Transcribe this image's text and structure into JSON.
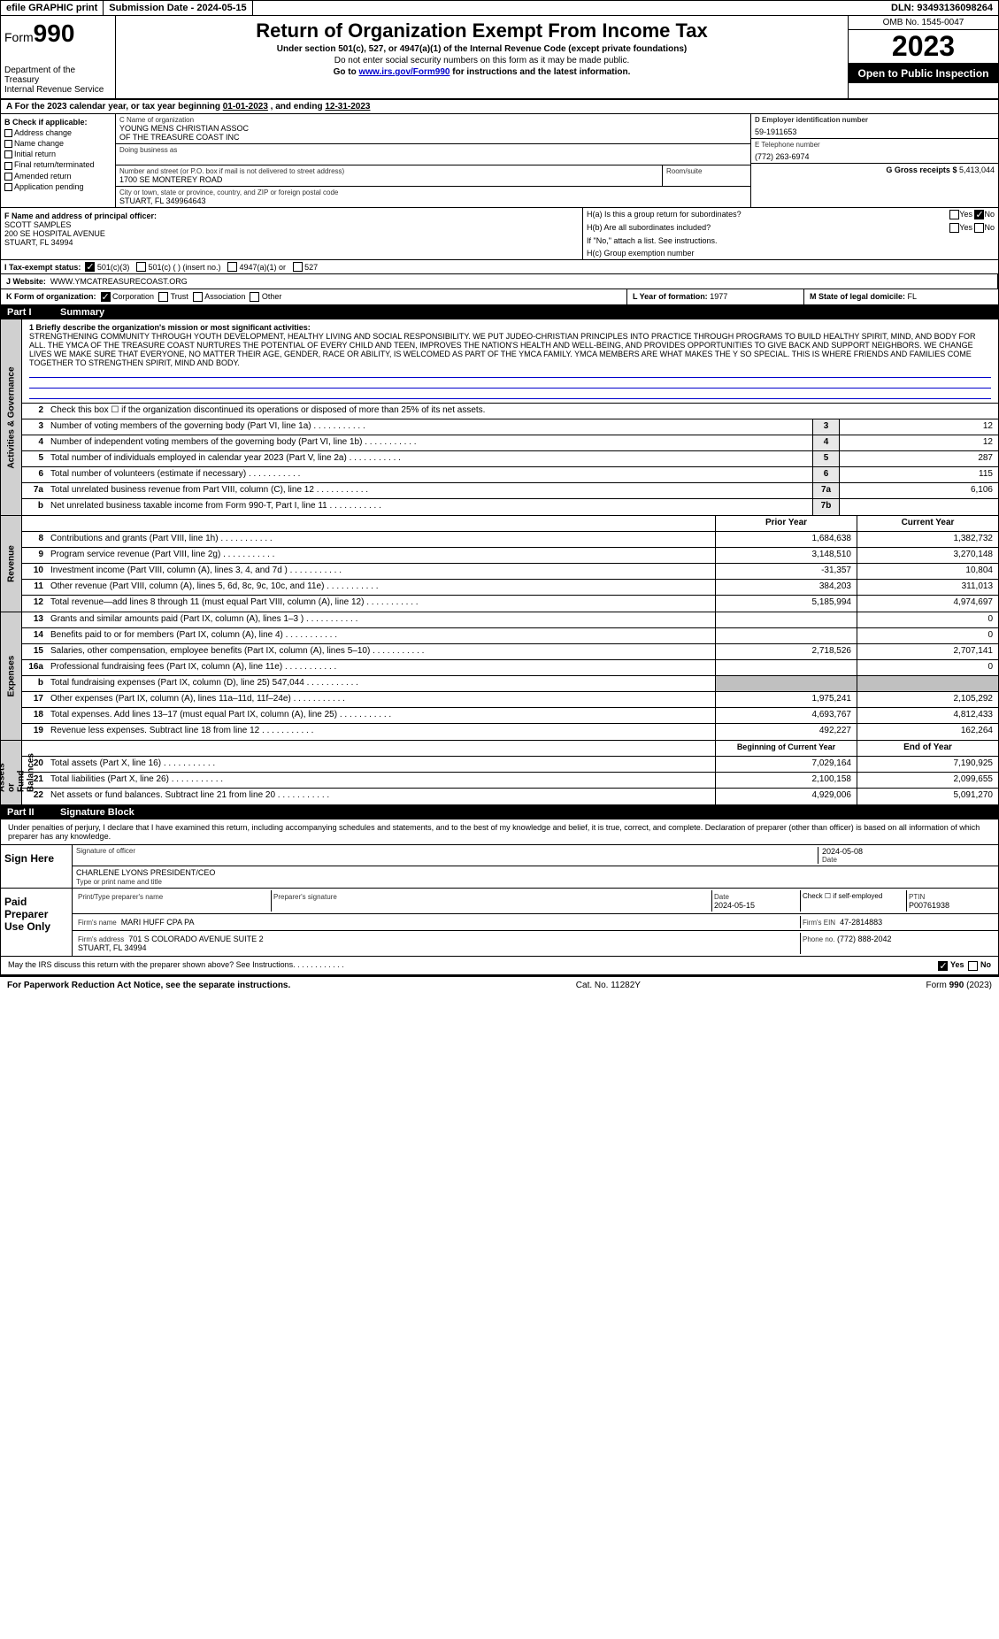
{
  "topbar": {
    "efile": "efile GRAPHIC print",
    "sub_lbl": "Submission Date - ",
    "sub_date": "2024-05-15",
    "dln_lbl": "DLN: ",
    "dln": "93493136098264"
  },
  "header": {
    "form_word": "Form",
    "form_num": "990",
    "dept": "Department of the Treasury\nInternal Revenue Service",
    "title": "Return of Organization Exempt From Income Tax",
    "sub1": "Under section 501(c), 527, or 4947(a)(1) of the Internal Revenue Code (except private foundations)",
    "sub2": "Do not enter social security numbers on this form as it may be made public.",
    "sub3_pre": "Go to ",
    "sub3_link": "www.irs.gov/Form990",
    "sub3_post": " for instructions and the latest information.",
    "omb": "OMB No. 1545-0047",
    "year": "2023",
    "open": "Open to Public Inspection"
  },
  "rowA": {
    "pre": "A For the 2023 calendar year, or tax year beginning ",
    "begin": "01-01-2023",
    "mid": "  , and ending ",
    "end": "12-31-2023"
  },
  "colB": {
    "hdr": "B Check if applicable:",
    "items": [
      "Address change",
      "Name change",
      "Initial return",
      "Final return/terminated",
      "Amended return",
      "Application pending"
    ]
  },
  "colC": {
    "name_lbl": "C Name of organization",
    "name": "YOUNG MENS CHRISTIAN ASSOC\nOF THE TREASURE COAST INC",
    "dba_lbl": "Doing business as",
    "addr_lbl": "Number and street (or P.O. box if mail is not delivered to street address)",
    "addr": "1700 SE MONTEREY ROAD",
    "room_lbl": "Room/suite",
    "city_lbl": "City or town, state or province, country, and ZIP or foreign postal code",
    "city": "STUART, FL  349964643"
  },
  "colDE": {
    "d_lbl": "D Employer identification number",
    "d_val": "59-1911653",
    "e_lbl": "E Telephone number",
    "e_val": "(772) 263-6974",
    "g_lbl": "G Gross receipts $ ",
    "g_val": "5,413,044"
  },
  "rowF": {
    "lbl": "F Name and address of principal officer:",
    "name": "SCOTT SAMPLES",
    "addr1": "200 SE HOSPITAL AVENUE",
    "addr2": "STUART, FL  34994"
  },
  "rowH": {
    "ha": "H(a)  Is this a group return for subordinates?",
    "hb": "H(b)  Are all subordinates included?",
    "hb2": "If \"No,\" attach a list. See instructions.",
    "hc": "H(c)  Group exemption number",
    "yes": "Yes",
    "no": "No"
  },
  "rowI": {
    "lbl": "I   Tax-exempt status:",
    "o1": "501(c)(3)",
    "o2": "501(c) (  ) (insert no.)",
    "o3": "4947(a)(1) or",
    "o4": "527"
  },
  "rowJ": {
    "lbl": "J   Website:",
    "val": "WWW.YMCATREASURECOAST.ORG"
  },
  "rowK": {
    "lbl": "K Form of organization:",
    "o1": "Corporation",
    "o2": "Trust",
    "o3": "Association",
    "o4": "Other"
  },
  "rowL": {
    "lbl": "L Year of formation: ",
    "val": "1977"
  },
  "rowM": {
    "lbl": "M State of legal domicile: ",
    "val": "FL"
  },
  "part1": {
    "pt": "Part I",
    "title": "Summary"
  },
  "section_labels": {
    "gov": "Activities & Governance",
    "rev": "Revenue",
    "exp": "Expenses",
    "net": "Net Assets or\nFund Balances"
  },
  "mission": {
    "lbl": "1   Briefly describe the organization's mission or most significant activities:",
    "text": "STRENGTHENING COMMUNITY THROUGH YOUTH DEVELOPMENT, HEALTHY LIVING AND SOCIAL RESPONSIBILITY. WE PUT JUDEO-CHRISTIAN PRINCIPLES INTO PRACTICE THROUGH PROGRAMS TO BUILD HEALTHY SPIRIT, MIND, AND BODY FOR ALL. THE YMCA OF THE TREASURE COAST NURTURES THE POTENTIAL OF EVERY CHILD AND TEEN, IMPROVES THE NATION'S HEALTH AND WELL-BEING, AND PROVIDES OPPORTUNITIES TO GIVE BACK AND SUPPORT NEIGHBORS. WE CHANGE LIVES WE MAKE SURE THAT EVERYONE, NO MATTER THEIR AGE, GENDER, RACE OR ABILITY, IS WELCOMED AS PART OF THE YMCA FAMILY. YMCA MEMBERS ARE WHAT MAKES THE Y SO SPECIAL. THIS IS WHERE FRIENDS AND FAMILIES COME TOGETHER TO STRENGTHEN SPIRIT, MIND AND BODY."
  },
  "gov_lines": [
    {
      "n": "2",
      "t": "Check this box  ☐  if the organization discontinued its operations or disposed of more than 25% of its net assets."
    },
    {
      "n": "3",
      "t": "Number of voting members of the governing body (Part VI, line 1a)",
      "box": "3",
      "v": "12"
    },
    {
      "n": "4",
      "t": "Number of independent voting members of the governing body (Part VI, line 1b)",
      "box": "4",
      "v": "12"
    },
    {
      "n": "5",
      "t": "Total number of individuals employed in calendar year 2023 (Part V, line 2a)",
      "box": "5",
      "v": "287"
    },
    {
      "n": "6",
      "t": "Total number of volunteers (estimate if necessary)",
      "box": "6",
      "v": "115"
    },
    {
      "n": "7a",
      "t": "Total unrelated business revenue from Part VIII, column (C), line 12",
      "box": "7a",
      "v": "6,106"
    },
    {
      "n": "b",
      "t": "Net unrelated business taxable income from Form 990-T, Part I, line 11",
      "box": "7b",
      "v": ""
    }
  ],
  "col_hdrs": {
    "prior": "Prior Year",
    "curr": "Current Year"
  },
  "rev_lines": [
    {
      "n": "8",
      "t": "Contributions and grants (Part VIII, line 1h)",
      "p": "1,684,638",
      "c": "1,382,732"
    },
    {
      "n": "9",
      "t": "Program service revenue (Part VIII, line 2g)",
      "p": "3,148,510",
      "c": "3,270,148"
    },
    {
      "n": "10",
      "t": "Investment income (Part VIII, column (A), lines 3, 4, and 7d )",
      "p": "-31,357",
      "c": "10,804"
    },
    {
      "n": "11",
      "t": "Other revenue (Part VIII, column (A), lines 5, 6d, 8c, 9c, 10c, and 11e)",
      "p": "384,203",
      "c": "311,013"
    },
    {
      "n": "12",
      "t": "Total revenue—add lines 8 through 11 (must equal Part VIII, column (A), line 12)",
      "p": "5,185,994",
      "c": "4,974,697"
    }
  ],
  "exp_lines": [
    {
      "n": "13",
      "t": "Grants and similar amounts paid (Part IX, column (A), lines 1–3 )",
      "p": "",
      "c": "0"
    },
    {
      "n": "14",
      "t": "Benefits paid to or for members (Part IX, column (A), line 4)",
      "p": "",
      "c": "0"
    },
    {
      "n": "15",
      "t": "Salaries, other compensation, employee benefits (Part IX, column (A), lines 5–10)",
      "p": "2,718,526",
      "c": "2,707,141"
    },
    {
      "n": "16a",
      "t": "Professional fundraising fees (Part IX, column (A), line 11e)",
      "p": "",
      "c": "0"
    },
    {
      "n": "b",
      "t": "Total fundraising expenses (Part IX, column (D), line 25) 547,044",
      "p": "GRAY",
      "c": "GRAY"
    },
    {
      "n": "17",
      "t": "Other expenses (Part IX, column (A), lines 11a–11d, 11f–24e)",
      "p": "1,975,241",
      "c": "2,105,292"
    },
    {
      "n": "18",
      "t": "Total expenses. Add lines 13–17 (must equal Part IX, column (A), line 25)",
      "p": "4,693,767",
      "c": "4,812,433"
    },
    {
      "n": "19",
      "t": "Revenue less expenses. Subtract line 18 from line 12",
      "p": "492,227",
      "c": "162,264"
    }
  ],
  "net_hdrs": {
    "begin": "Beginning of Current Year",
    "end": "End of Year"
  },
  "net_lines": [
    {
      "n": "20",
      "t": "Total assets (Part X, line 16)",
      "p": "7,029,164",
      "c": "7,190,925"
    },
    {
      "n": "21",
      "t": "Total liabilities (Part X, line 26)",
      "p": "2,100,158",
      "c": "2,099,655"
    },
    {
      "n": "22",
      "t": "Net assets or fund balances. Subtract line 21 from line 20",
      "p": "4,929,006",
      "c": "5,091,270"
    }
  ],
  "part2": {
    "pt": "Part II",
    "title": "Signature Block"
  },
  "sig": {
    "decl": "Under penalties of perjury, I declare that I have examined this return, including accompanying schedules and statements, and to the best of my knowledge and belief, it is true, correct, and complete. Declaration of preparer (other than officer) is based on all information of which preparer has any knowledge.",
    "sign_here": "Sign Here",
    "sig_officer_lbl": "Signature of officer",
    "date_lbl": "Date",
    "sig_date": "2024-05-08",
    "officer": "CHARLENE LYONS  PRESIDENT/CEO",
    "type_name_lbl": "Type or print name and title",
    "paid": "Paid Preparer Use Only",
    "prep_name_lbl": "Print/Type preparer's name",
    "prep_sig_lbl": "Preparer's signature",
    "prep_date": "2024-05-15",
    "check_self": "Check ☐ if self-employed",
    "ptin_lbl": "PTIN",
    "ptin": "P00761938",
    "firm_name_lbl": "Firm's name",
    "firm_name": "MARI HUFF CPA PA",
    "firm_ein_lbl": "Firm's EIN",
    "firm_ein": "47-2814883",
    "firm_addr_lbl": "Firm's address",
    "firm_addr": "701 S COLORADO AVENUE SUITE 2\nSTUART, FL  34994",
    "phone_lbl": "Phone no.",
    "phone": "(772) 888-2042",
    "discuss": "May the IRS discuss this return with the preparer shown above? See Instructions."
  },
  "footer": {
    "left": "For Paperwork Reduction Act Notice, see the separate instructions.",
    "mid": "Cat. No. 11282Y",
    "right": "Form 990 (2023)"
  }
}
